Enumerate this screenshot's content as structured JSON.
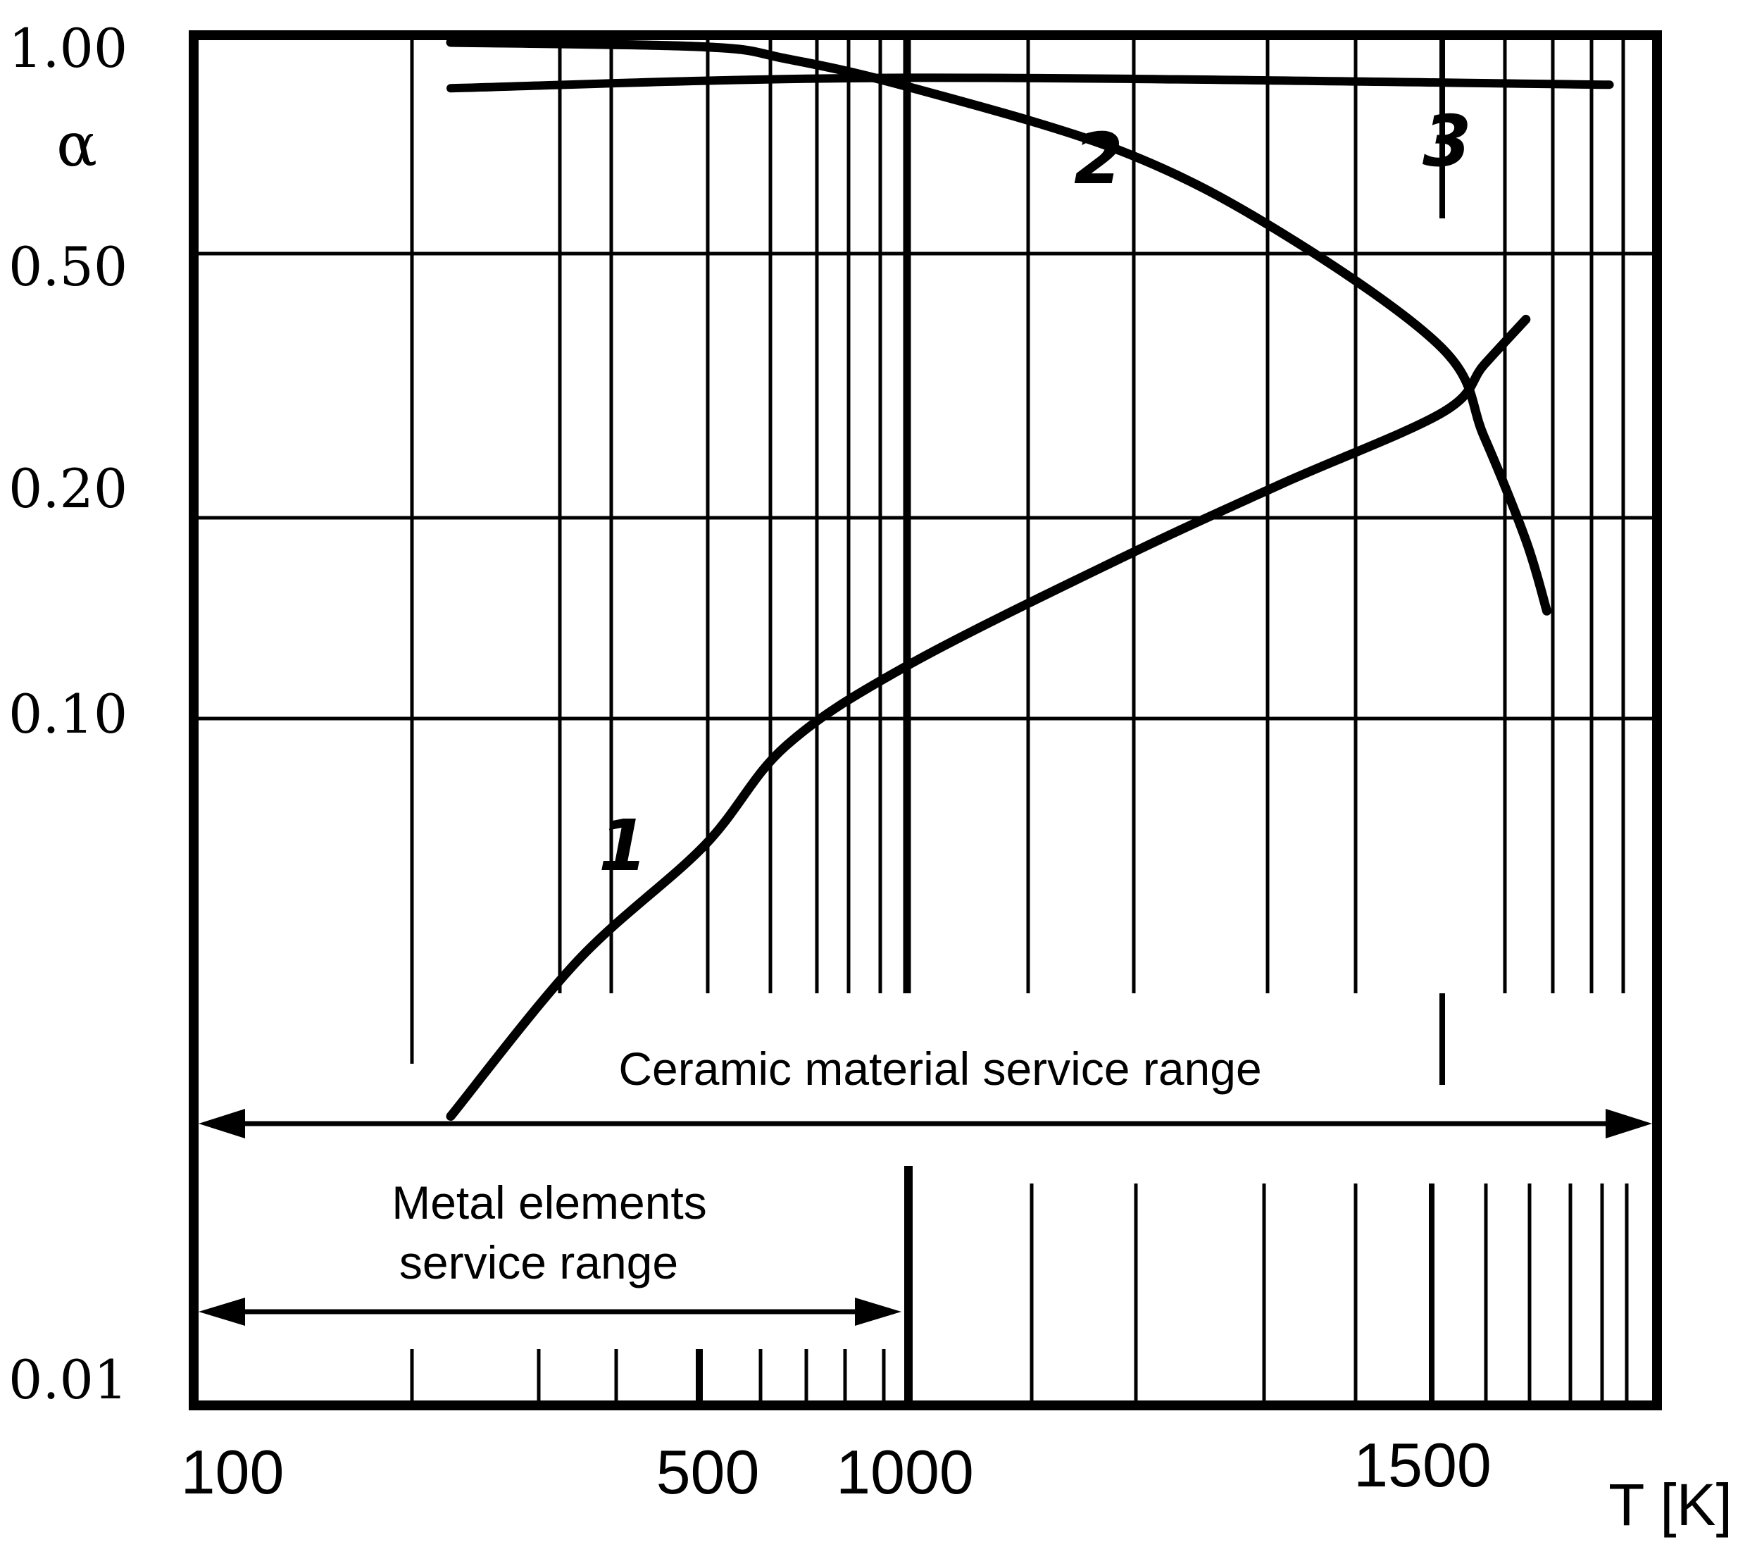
{
  "chart_data": {
    "type": "line",
    "ylabel": "α",
    "xlabel": "T [K]",
    "x_ticks": [
      {
        "label": "100",
        "value": 100
      },
      {
        "label": "500",
        "value": 500
      },
      {
        "label": "1000",
        "value": 1000
      },
      {
        "label": "1500",
        "value": 1500
      }
    ],
    "y_ticks": [
      {
        "label": "1.00",
        "value": 1.0
      },
      {
        "label": "0.50",
        "value": 0.5
      },
      {
        "label": "0.20",
        "value": 0.2
      },
      {
        "label": "0.10",
        "value": 0.1
      },
      {
        "label": "0.01",
        "value": 0.01
      }
    ],
    "series": [
      {
        "name": "1",
        "points": [
          [
            300,
            0.026
          ],
          [
            400,
            0.044
          ],
          [
            500,
            0.065
          ],
          [
            700,
            0.091
          ],
          [
            1000,
            0.12
          ],
          [
            1200,
            0.174
          ],
          [
            1350,
            0.225
          ],
          [
            1500,
            0.288
          ],
          [
            1600,
            0.34
          ],
          [
            1700,
            0.398
          ]
        ]
      },
      {
        "name": "2",
        "points": [
          [
            300,
            1.0
          ],
          [
            500,
            0.985
          ],
          [
            700,
            0.948
          ],
          [
            1000,
            0.865
          ],
          [
            1200,
            0.7
          ],
          [
            1350,
            0.535
          ],
          [
            1500,
            0.36
          ],
          [
            1600,
            0.265
          ],
          [
            1700,
            0.185
          ],
          [
            1750,
            0.145
          ]
        ]
      },
      {
        "name": "3",
        "points": [
          [
            300,
            0.86
          ],
          [
            1000,
            0.89
          ],
          [
            1900,
            0.87
          ]
        ]
      }
    ],
    "annotations": {
      "ceramic_range": {
        "text": "Ceramic material service range",
        "from": 100,
        "to": 2000
      },
      "metal_range": {
        "text_line1": "Metal elements",
        "text_line2": "service range",
        "from": 100,
        "to": 1000
      }
    },
    "xlim": [
      100,
      2000
    ],
    "ylim": [
      0.01,
      1.0
    ],
    "grid": true,
    "legend": "none"
  }
}
